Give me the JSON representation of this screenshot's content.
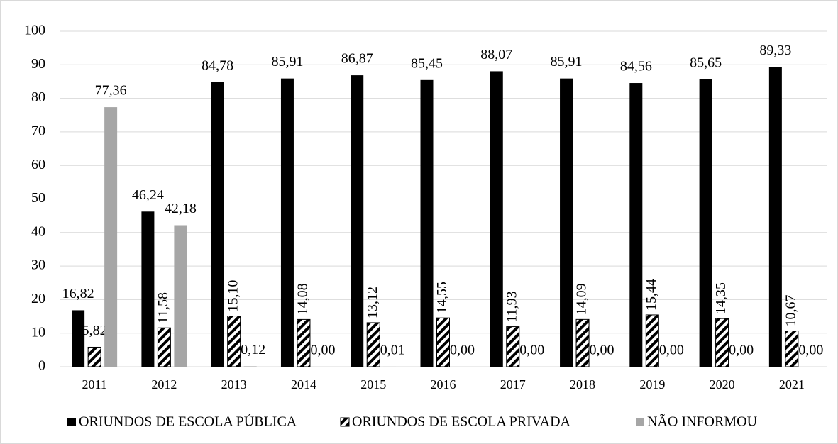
{
  "chart_data": {
    "type": "bar",
    "categories": [
      "2011",
      "2012",
      "2013",
      "2014",
      "2015",
      "2016",
      "2017",
      "2018",
      "2019",
      "2020",
      "2021"
    ],
    "series": [
      {
        "name": "ORIUNDOS DE ESCOLA PÚBLICA",
        "color": "#000000",
        "values": [
          16.82,
          46.24,
          84.78,
          85.91,
          86.87,
          85.45,
          88.07,
          85.91,
          84.56,
          85.65,
          89.33
        ],
        "value_labels": [
          "16,82",
          "46,24",
          "84,78",
          "85,91",
          "86,87",
          "85,45",
          "88,07",
          "85,91",
          "84,56",
          "85,65",
          "89,33"
        ]
      },
      {
        "name": "ORIUNDOS DE ESCOLA PRIVADA",
        "color": "#000000",
        "pattern": "diagonal-stripes",
        "values": [
          5.82,
          11.58,
          15.1,
          14.08,
          13.12,
          14.55,
          11.93,
          14.09,
          15.44,
          14.35,
          10.67
        ],
        "value_labels": [
          "5,82",
          "11,58",
          "15,10",
          "14,08",
          "13,12",
          "14,55",
          "11,93",
          "14,09",
          "15,44",
          "14,35",
          "10,67"
        ]
      },
      {
        "name": "NÃO INFORMOU",
        "color": "#a6a6a6",
        "values": [
          77.36,
          42.18,
          0.12,
          0.0,
          0.01,
          0.0,
          0.0,
          0.0,
          0.0,
          0.0,
          0.0
        ],
        "value_labels": [
          "77,36",
          "42,18",
          "0,12",
          "0,00",
          "0,01",
          "0,00",
          "0,00",
          "0,00",
          "0,00",
          "0,00",
          "0,00"
        ]
      }
    ],
    "ylim": [
      0,
      100
    ],
    "yticks": [
      0,
      10,
      20,
      30,
      40,
      50,
      60,
      70,
      80,
      90,
      100
    ],
    "grid": true,
    "legend": "bottom"
  }
}
